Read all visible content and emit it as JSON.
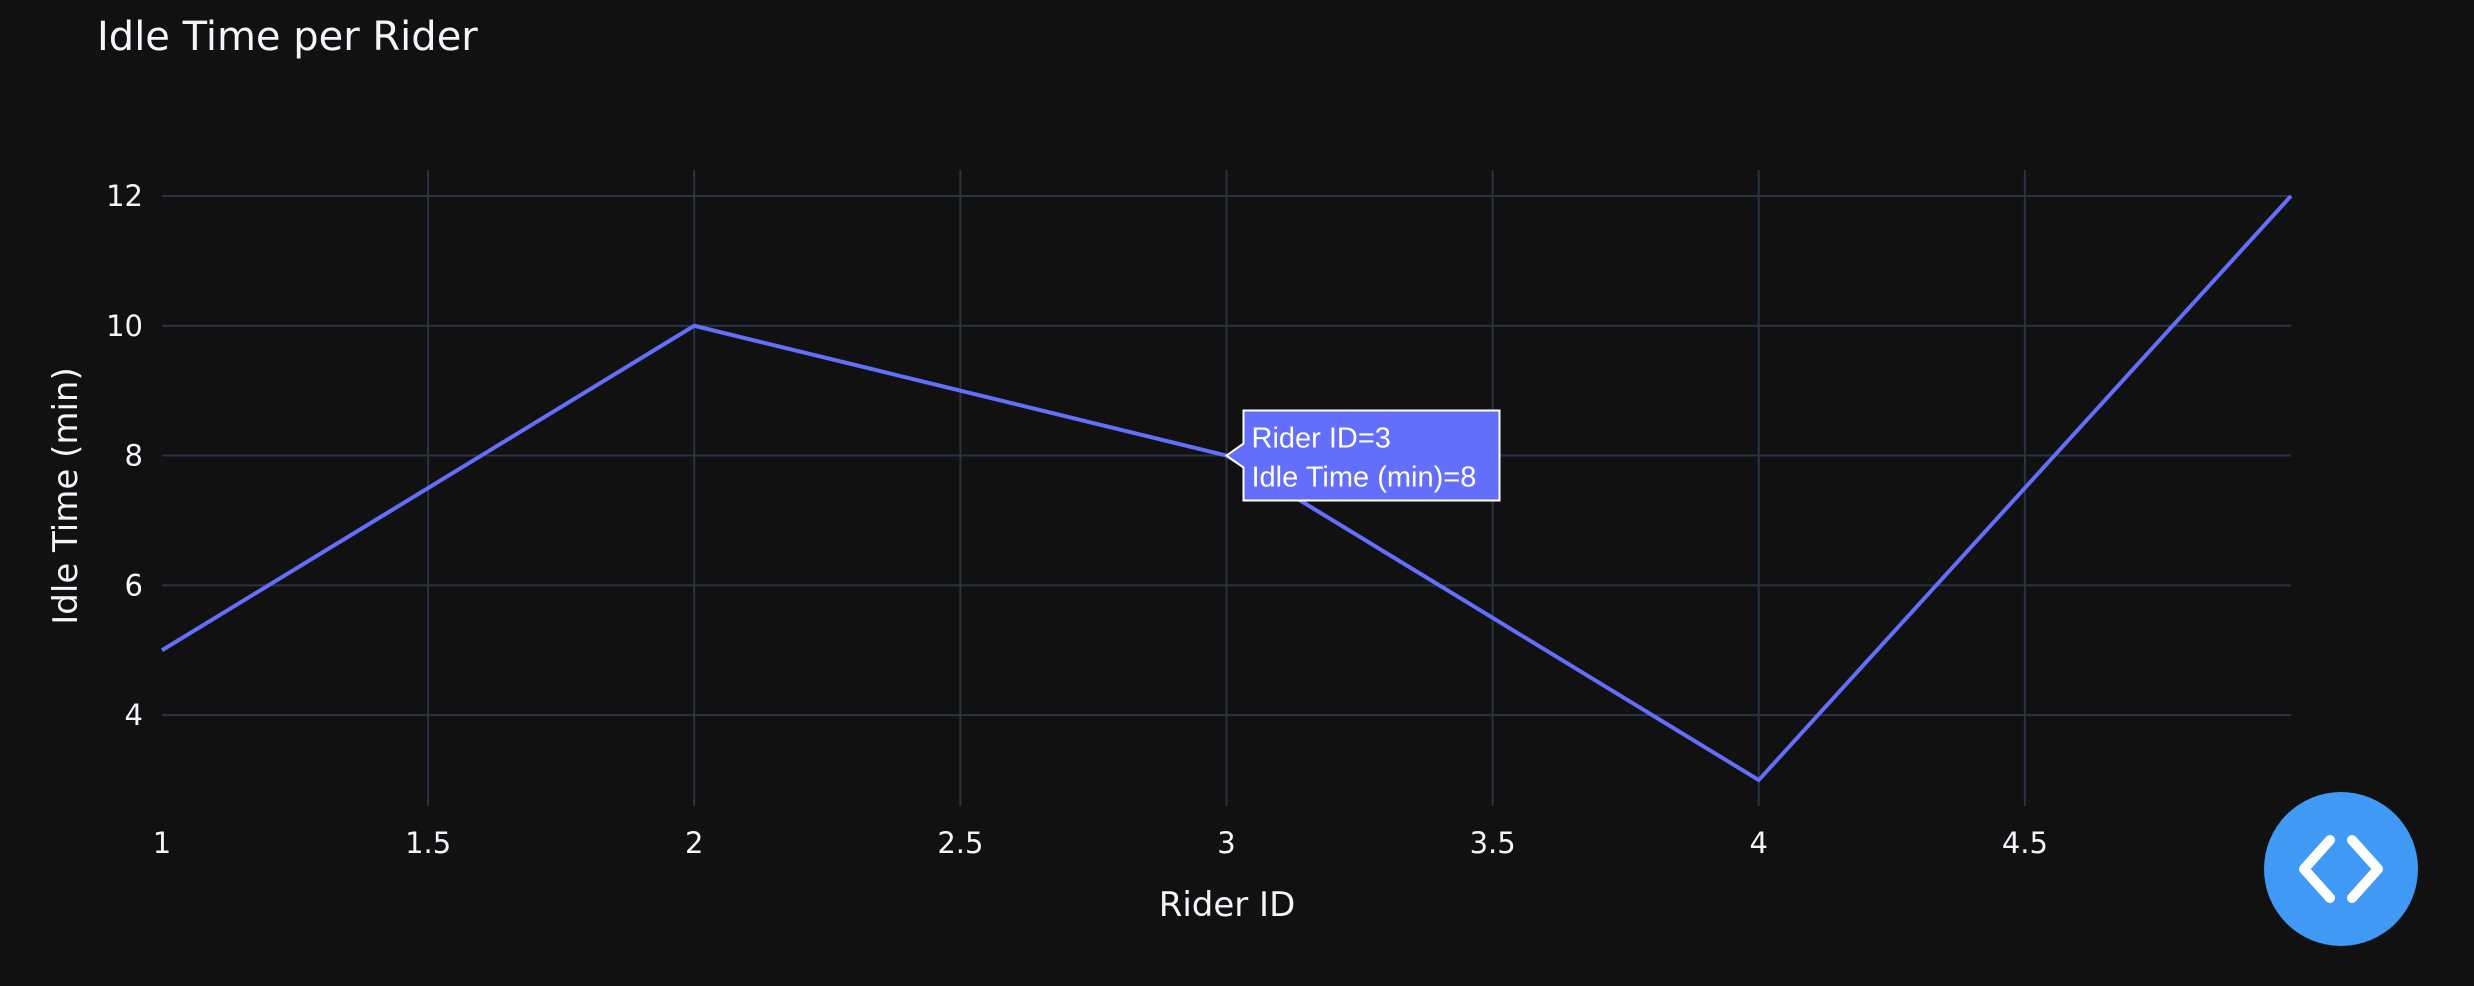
{
  "colors": {
    "background": "#111111",
    "grid": "#283442",
    "text": "#f2f5fa",
    "series": "#636efa",
    "tooltip_border": "#ffffff",
    "code_button": "#3f99f5"
  },
  "chart_data": {
    "type": "line",
    "title": "Idle Time per Rider",
    "xlabel": "Rider ID",
    "ylabel": "Idle Time (min)",
    "x": [
      1,
      2,
      3,
      4,
      5
    ],
    "series": [
      {
        "values": [
          5,
          10,
          8,
          3,
          12
        ]
      }
    ],
    "xlim": [
      1,
      5
    ],
    "ylim": [
      2.6,
      12.4
    ],
    "xticks": [
      1,
      1.5,
      2,
      2.5,
      3,
      3.5,
      4,
      4.5
    ],
    "yticks": [
      4,
      6,
      8,
      10,
      12
    ],
    "grid": true,
    "hover": {
      "x": 3,
      "y": 8,
      "line1": "Rider ID=3",
      "line2": "Idle Time (min)=8"
    }
  },
  "code_button": {
    "icon": "code-brackets-icon"
  }
}
